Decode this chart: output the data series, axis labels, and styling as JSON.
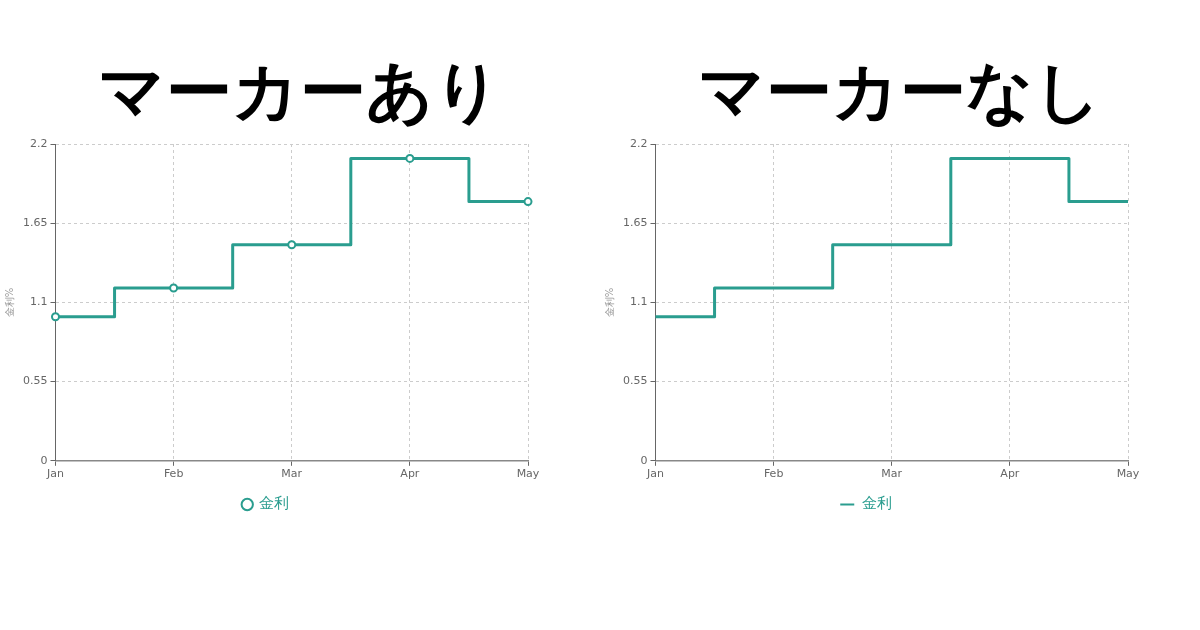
{
  "chart_data": [
    {
      "type": "step",
      "title": "マーカーあり",
      "ylabel": "金利%",
      "categories": [
        "Jan",
        "Feb",
        "Mar",
        "Apr",
        "May"
      ],
      "series": [
        {
          "name": "金利",
          "color": "#2a9d8f",
          "values": [
            1.0,
            1.2,
            1.5,
            2.1,
            1.8
          ]
        }
      ],
      "ylim": [
        0,
        2.2
      ],
      "yticks": [
        0,
        0.55,
        1.1,
        1.65,
        2.2
      ],
      "grid": true,
      "legend": "bottom",
      "marker": "circle",
      "line_style": "solid"
    },
    {
      "type": "step",
      "title": "マーカーなし",
      "ylabel": "金利%",
      "categories": [
        "Jan",
        "Feb",
        "Mar",
        "Apr",
        "May"
      ],
      "series": [
        {
          "name": "金利",
          "color": "#2a9d8f",
          "values": [
            1.0,
            1.2,
            1.5,
            2.1,
            1.8
          ]
        }
      ],
      "ylim": [
        0,
        2.2
      ],
      "yticks": [
        0,
        0.55,
        1.1,
        1.65,
        2.2
      ],
      "grid": true,
      "legend": "bottom",
      "marker": "none",
      "line_style": "solid"
    }
  ]
}
